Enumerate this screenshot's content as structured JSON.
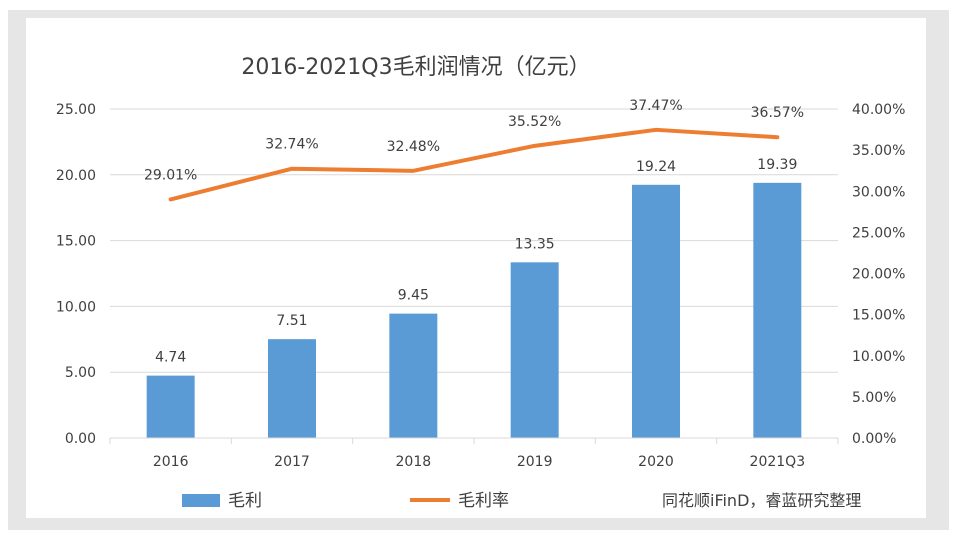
{
  "chart_data": {
    "type": "bar",
    "title": "2016-2021Q3毛利润情况（亿元）",
    "categories": [
      "2016",
      "2017",
      "2018",
      "2019",
      "2020",
      "2021Q3"
    ],
    "series": [
      {
        "name": "毛利",
        "type": "bar",
        "axis": "left",
        "color": "#5b9bd5",
        "values": [
          4.74,
          7.51,
          9.45,
          13.35,
          19.24,
          19.39
        ],
        "labels": [
          "4.74",
          "7.51",
          "9.45",
          "13.35",
          "19.24",
          "19.39"
        ]
      },
      {
        "name": "毛利率",
        "type": "line",
        "axis": "right",
        "color": "#ed7d31",
        "values": [
          29.01,
          32.74,
          32.48,
          35.52,
          37.47,
          36.57
        ],
        "labels": [
          "29.01%",
          "32.74%",
          "32.48%",
          "35.52%",
          "37.47%",
          "36.57%"
        ]
      }
    ],
    "left_axis": {
      "ylim": [
        0,
        25
      ],
      "ticks": [
        0,
        5,
        10,
        15,
        20,
        25
      ],
      "tick_labels": [
        "0.00",
        "5.00",
        "10.00",
        "15.00",
        "20.00",
        "25.00"
      ]
    },
    "right_axis": {
      "ylim": [
        0,
        40
      ],
      "ticks": [
        0,
        5,
        10,
        15,
        20,
        25,
        30,
        35,
        40
      ],
      "tick_labels": [
        "0.00%",
        "5.00%",
        "10.00%",
        "15.00%",
        "20.00%",
        "25.00%",
        "30.00%",
        "35.00%",
        "40.00%"
      ]
    },
    "grid": true,
    "legend": "bottom",
    "source_note": "同花顺iFinD，睿蓝研究整理"
  },
  "colors": {
    "grid": "#d9d9d9",
    "text": "#404040",
    "frame": "#e6e6e6"
  }
}
